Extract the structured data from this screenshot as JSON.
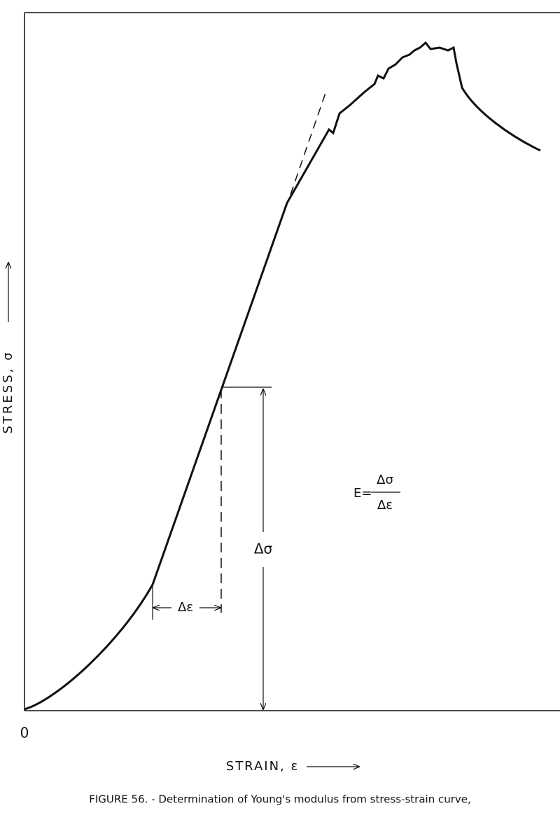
{
  "axes": {
    "y_label": "STRESS, σ",
    "x_label": "STRAIN, ε",
    "origin": "0"
  },
  "annotations": {
    "delta_strain": "Δε",
    "delta_stress": "Δσ"
  },
  "formula": {
    "lhs": "E=",
    "numerator": "Δσ",
    "denominator": "Δε"
  },
  "caption": "FIGURE 56. - Determination of Young's modulus from stress-strain curve,"
}
